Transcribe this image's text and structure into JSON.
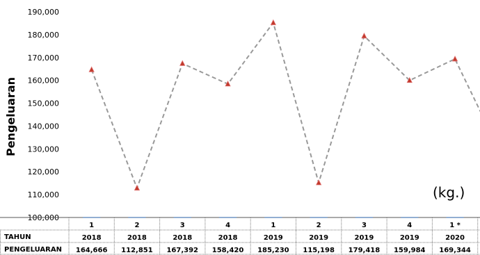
{
  "chart_data": {
    "type": "line",
    "ylabel": "Pengeluaran",
    "unit_note": "(kg.)",
    "ylim": [
      100000,
      190000
    ],
    "yticks": [
      "100,000",
      "110,000",
      "120,000",
      "130,000",
      "140,000",
      "150,000",
      "160,000",
      "170,000",
      "180,000",
      "190,000"
    ],
    "quarters": [
      "1",
      "2",
      "3",
      "4",
      "1",
      "2",
      "3",
      "4",
      "1 *"
    ],
    "table": {
      "row_labels": [
        "TAHUN",
        "PENGELUARAN"
      ],
      "years": [
        "2018",
        "2018",
        "2018",
        "2018",
        "2019",
        "2019",
        "2019",
        "2019",
        "2020"
      ],
      "values_text": [
        "164,666",
        "112,851",
        "167,392",
        "158,420",
        "185,230",
        "115,198",
        "179,418",
        "159,984",
        "169,344"
      ]
    },
    "values": [
      164666,
      112851,
      167392,
      158420,
      185230,
      115198,
      179418,
      159984,
      169344
    ],
    "colors": {
      "line": "#999999",
      "marker": "#c0392b",
      "marker_edge": "#e07070"
    }
  }
}
